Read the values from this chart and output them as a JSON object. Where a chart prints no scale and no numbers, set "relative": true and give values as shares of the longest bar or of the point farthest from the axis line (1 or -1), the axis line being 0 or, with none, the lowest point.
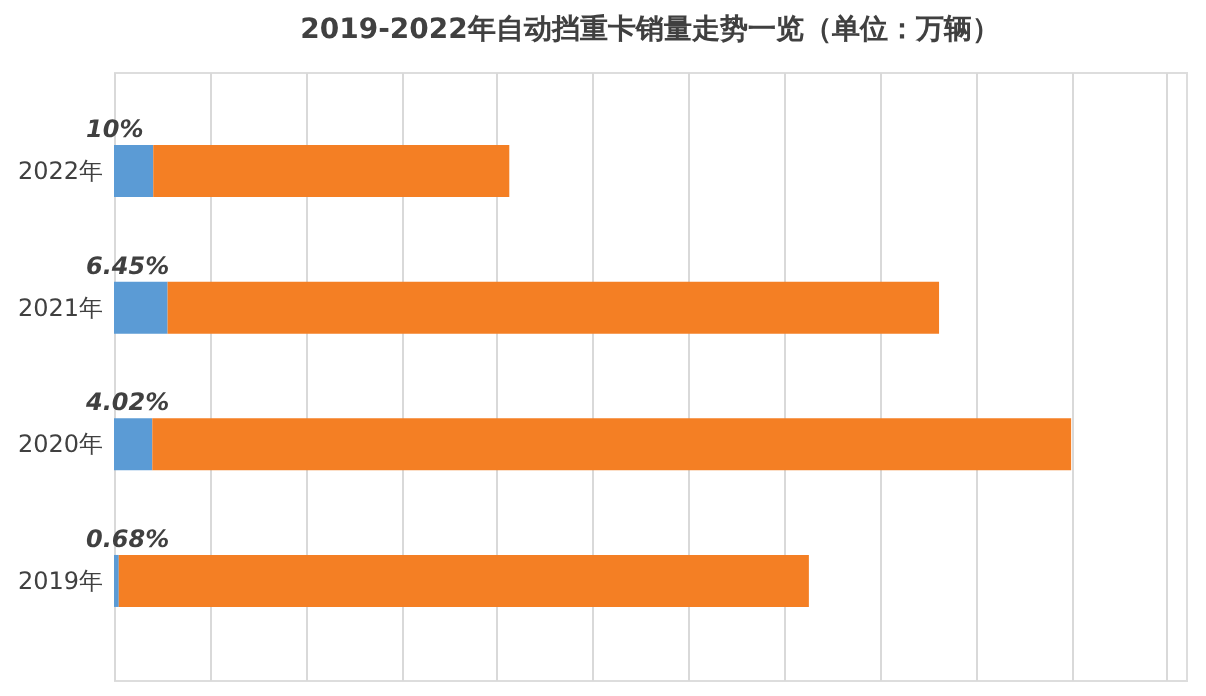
{
  "chart_data": {
    "type": "bar",
    "orientation": "horizontal",
    "stacked": true,
    "relative": true,
    "title": "2019-2022年自动挡重卡销量走势一览（单位：万辆）",
    "categories": [
      "2022年",
      "2021年",
      "2020年",
      "2019年"
    ],
    "series": [
      {
        "color": "#5b9bd5",
        "values": [
          0.041,
          0.056,
          0.04,
          0.005
        ]
      },
      {
        "color": "#f47f24",
        "values": [
          0.372,
          0.806,
          0.96,
          0.721
        ]
      }
    ],
    "annotations": [
      "10%",
      "6.45%",
      "4.02%",
      "0.68%"
    ],
    "grid": "x"
  }
}
